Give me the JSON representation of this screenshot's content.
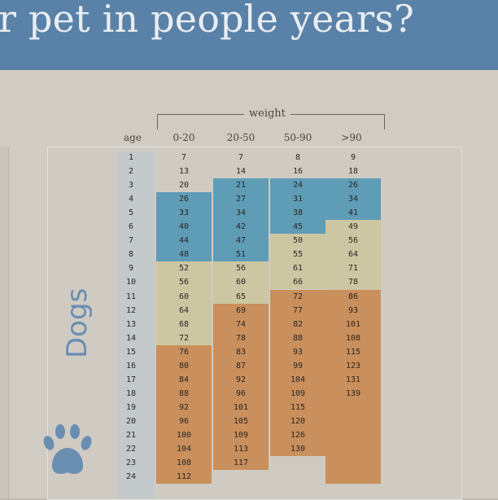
{
  "banner": {
    "title": "r pet in people years?"
  },
  "table": {
    "group_header": "weight",
    "age_header": "age",
    "columns": [
      "0-20",
      "20-50",
      "50-90",
      ">90"
    ],
    "animal_label": "Dogs",
    "ages": [
      "1",
      "2",
      "3",
      "4",
      "5",
      "6",
      "7",
      "8",
      "9",
      "10",
      "11",
      "12",
      "13",
      "14",
      "15",
      "16",
      "17",
      "18",
      "19",
      "20",
      "21",
      "22",
      "23",
      "24"
    ],
    "values": {
      "0-20": [
        "7",
        "13",
        "20",
        "26",
        "33",
        "40",
        "44",
        "48",
        "52",
        "56",
        "60",
        "64",
        "68",
        "72",
        "76",
        "80",
        "84",
        "88",
        "92",
        "96",
        "100",
        "104",
        "108",
        "112"
      ],
      "20-50": [
        "7",
        "14",
        "21",
        "27",
        "34",
        "42",
        "47",
        "51",
        "56",
        "60",
        "65",
        "69",
        "74",
        "78",
        "83",
        "87",
        "92",
        "96",
        "101",
        "105",
        "109",
        "113",
        "117"
      ],
      "50-90": [
        "8",
        "16",
        "24",
        "31",
        "38",
        "45",
        "50",
        "55",
        "61",
        "66",
        "72",
        "77",
        "82",
        "88",
        "93",
        "99",
        "104",
        "109",
        "115",
        "120",
        "126",
        "130"
      ],
      ">90": [
        "9",
        "18",
        "26",
        "34",
        "41",
        "49",
        "56",
        "64",
        "71",
        "78",
        "86",
        "93",
        "101",
        "108",
        "115",
        "123",
        "131",
        "139"
      ]
    },
    "colors": {
      "white": "#cfcbc3",
      "blue": "#5f9cb6",
      "cream": "#cdc6a2",
      "orange": "#c98f5c",
      "age_band": "#c4c9cb",
      "title_text": "#e8edf2",
      "banner": "#5a82a8",
      "dogs_label": "#6a8db2"
    },
    "icon": "paw-print-icon"
  }
}
